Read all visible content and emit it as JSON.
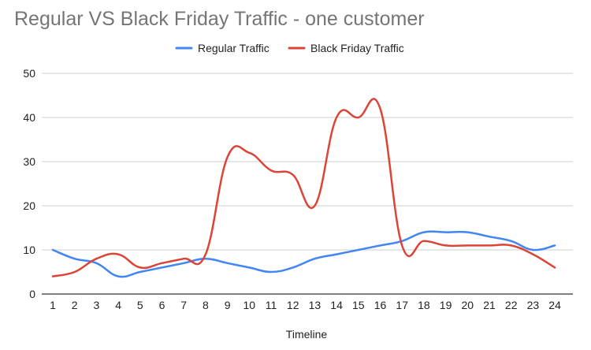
{
  "chart_data": {
    "type": "line",
    "title": "Regular VS Black Friday Traffic - one customer",
    "xlabel": "Timeline",
    "ylabel": "",
    "x": [
      1,
      2,
      3,
      4,
      5,
      6,
      7,
      8,
      9,
      10,
      11,
      12,
      13,
      14,
      15,
      16,
      17,
      18,
      19,
      20,
      21,
      22,
      23,
      24
    ],
    "ylim": [
      0,
      50
    ],
    "yticks": [
      0,
      10,
      20,
      30,
      40,
      50
    ],
    "grid": true,
    "legend_position": "top",
    "series": [
      {
        "name": "Regular Traffic",
        "color": "#4285f4",
        "values": [
          10,
          8,
          7,
          4,
          5,
          6,
          7,
          8,
          7,
          6,
          5,
          6,
          8,
          9,
          10,
          11,
          12,
          14,
          14,
          14,
          13,
          12,
          10,
          11
        ]
      },
      {
        "name": "Black Friday Traffic",
        "color": "#db4437",
        "values": [
          4,
          5,
          8,
          9,
          6,
          7,
          8,
          9,
          31,
          32,
          28,
          27,
          20,
          40,
          40,
          42,
          11,
          12,
          11,
          11,
          11,
          11,
          9,
          6
        ]
      }
    ]
  }
}
